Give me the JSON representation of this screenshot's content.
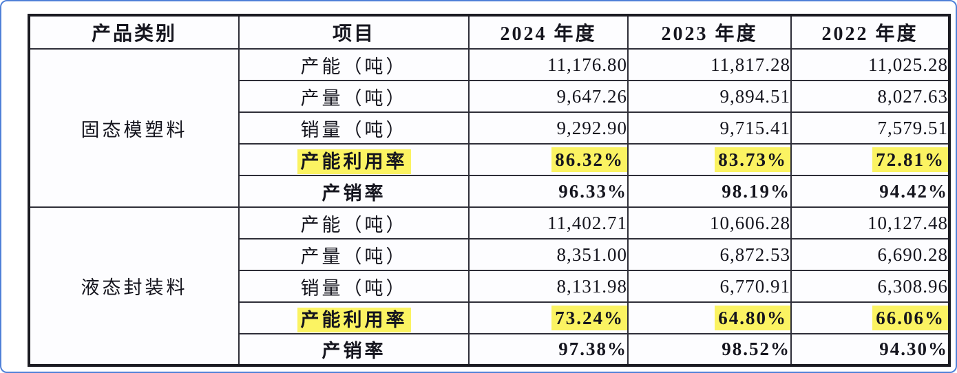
{
  "frame": {
    "border_color": "#4f80d8",
    "background": "#ffffff"
  },
  "colors": {
    "highlight": "#fbf362",
    "table_border": "#1b1b22",
    "text": "#15151e"
  },
  "table": {
    "headers": [
      "产品类别",
      "项目",
      "2024 年度",
      "2023 年度",
      "2022 年度"
    ],
    "groups": [
      {
        "category": "固态模塑料",
        "rows": [
          {
            "label": "产能（吨）",
            "bold": false,
            "highlight": false,
            "values": [
              "11,176.80",
              "11,817.28",
              "11,025.28"
            ]
          },
          {
            "label": "产量（吨）",
            "bold": false,
            "highlight": false,
            "values": [
              "9,647.26",
              "9,894.51",
              "8,027.63"
            ]
          },
          {
            "label": "销量（吨）",
            "bold": false,
            "highlight": false,
            "values": [
              "9,292.90",
              "9,715.41",
              "7,579.51"
            ]
          },
          {
            "label": "产能利用率",
            "bold": true,
            "highlight": true,
            "values": [
              "86.32%",
              "83.73%",
              "72.81%"
            ]
          },
          {
            "label": "产销率",
            "bold": true,
            "highlight": false,
            "values": [
              "96.33%",
              "98.19%",
              "94.42%"
            ]
          }
        ]
      },
      {
        "category": "液态封装料",
        "rows": [
          {
            "label": "产能（吨）",
            "bold": false,
            "highlight": false,
            "values": [
              "11,402.71",
              "10,606.28",
              "10,127.48"
            ]
          },
          {
            "label": "产量（吨）",
            "bold": false,
            "highlight": false,
            "values": [
              "8,351.00",
              "6,872.53",
              "6,690.28"
            ]
          },
          {
            "label": "销量（吨）",
            "bold": false,
            "highlight": false,
            "values": [
              "8,131.98",
              "6,770.91",
              "6,308.96"
            ]
          },
          {
            "label": "产能利用率",
            "bold": true,
            "highlight": true,
            "values": [
              "73.24%",
              "64.80%",
              "66.06%"
            ]
          },
          {
            "label": "产销率",
            "bold": true,
            "highlight": false,
            "values": [
              "97.38%",
              "98.52%",
              "94.30%"
            ]
          }
        ]
      }
    ]
  }
}
